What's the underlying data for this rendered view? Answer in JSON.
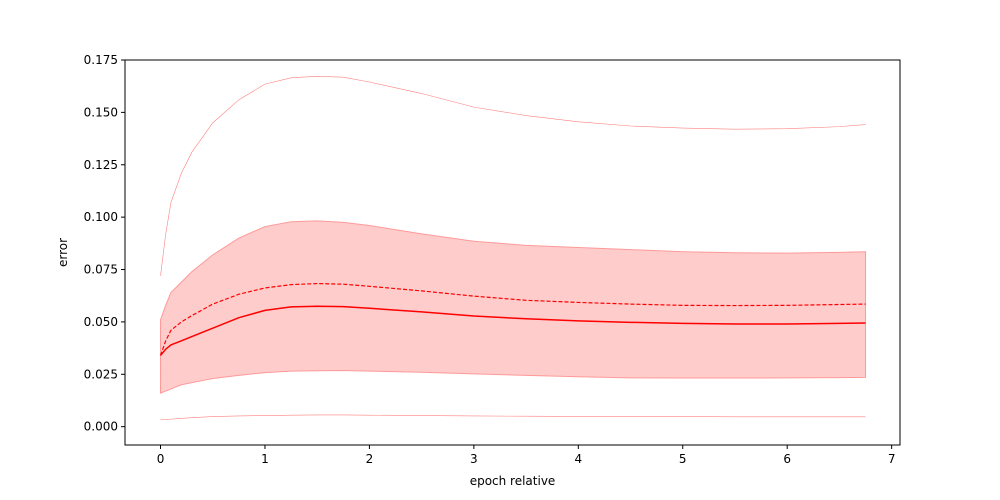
{
  "chart_data": {
    "type": "line",
    "title": "",
    "xlabel": "epoch relative",
    "ylabel": "error",
    "xlim": [
      -0.34,
      7.08
    ],
    "ylim": [
      -0.00875,
      0.175
    ],
    "xticks": [
      0,
      1,
      2,
      3,
      4,
      5,
      6,
      7
    ],
    "xtick_labels": [
      "0",
      "1",
      "2",
      "3",
      "4",
      "5",
      "6",
      "7"
    ],
    "yticks": [
      0.0,
      0.025,
      0.05,
      0.075,
      0.1,
      0.125,
      0.15,
      0.175
    ],
    "ytick_labels": [
      "0.000",
      "0.025",
      "0.050",
      "0.075",
      "0.100",
      "0.125",
      "0.150",
      "0.175"
    ],
    "grid": false,
    "legend": null,
    "colors": {
      "line": "#ff0000",
      "band": "#ff9999",
      "outer": "#ff8080"
    },
    "x": [
      0,
      0.05,
      0.1,
      0.2,
      0.3,
      0.5,
      0.75,
      1.0,
      1.25,
      1.5,
      1.75,
      2.0,
      2.5,
      3.0,
      3.5,
      4.0,
      4.5,
      5.0,
      5.5,
      6.0,
      6.5,
      6.75
    ],
    "series": [
      {
        "style": "solid",
        "values": [
          0.034,
          0.037,
          0.039,
          0.041,
          0.043,
          0.047,
          0.052,
          0.0555,
          0.0572,
          0.0575,
          0.0573,
          0.0565,
          0.0548,
          0.0528,
          0.0515,
          0.0505,
          0.0498,
          0.0493,
          0.049,
          0.049,
          0.0493,
          0.0495
        ]
      },
      {
        "style": "dashed",
        "values": [
          0.034,
          0.041,
          0.046,
          0.05,
          0.053,
          0.0585,
          0.0632,
          0.0662,
          0.0678,
          0.0683,
          0.068,
          0.067,
          0.0648,
          0.0623,
          0.0603,
          0.0593,
          0.0585,
          0.0579,
          0.0578,
          0.0579,
          0.0583,
          0.0585
        ]
      },
      {
        "style": "band",
        "upper": [
          0.051,
          0.058,
          0.064,
          0.069,
          0.074,
          0.082,
          0.09,
          0.0955,
          0.0978,
          0.0982,
          0.0975,
          0.096,
          0.092,
          0.0885,
          0.0865,
          0.0855,
          0.0845,
          0.0835,
          0.083,
          0.0828,
          0.0832,
          0.0835
        ],
        "lower": [
          0.016,
          0.017,
          0.018,
          0.02,
          0.021,
          0.023,
          0.0245,
          0.0258,
          0.0265,
          0.0267,
          0.0268,
          0.0265,
          0.026,
          0.0252,
          0.0245,
          0.0238,
          0.0233,
          0.0232,
          0.0232,
          0.0233,
          0.0234,
          0.0235
        ]
      },
      {
        "style": "thin",
        "values": [
          0.072,
          0.092,
          0.107,
          0.121,
          0.131,
          0.145,
          0.156,
          0.1635,
          0.1665,
          0.1672,
          0.1668,
          0.1645,
          0.159,
          0.1525,
          0.1485,
          0.1455,
          0.1435,
          0.1425,
          0.142,
          0.1422,
          0.1432,
          0.1442
        ]
      },
      {
        "style": "thin",
        "values": [
          0.0033,
          0.0034,
          0.0036,
          0.004,
          0.0043,
          0.0048,
          0.0051,
          0.0053,
          0.0055,
          0.0056,
          0.0056,
          0.0055,
          0.0053,
          0.0051,
          0.005,
          0.0049,
          0.0048,
          0.0048,
          0.0047,
          0.0047,
          0.0047,
          0.0047
        ]
      }
    ]
  }
}
